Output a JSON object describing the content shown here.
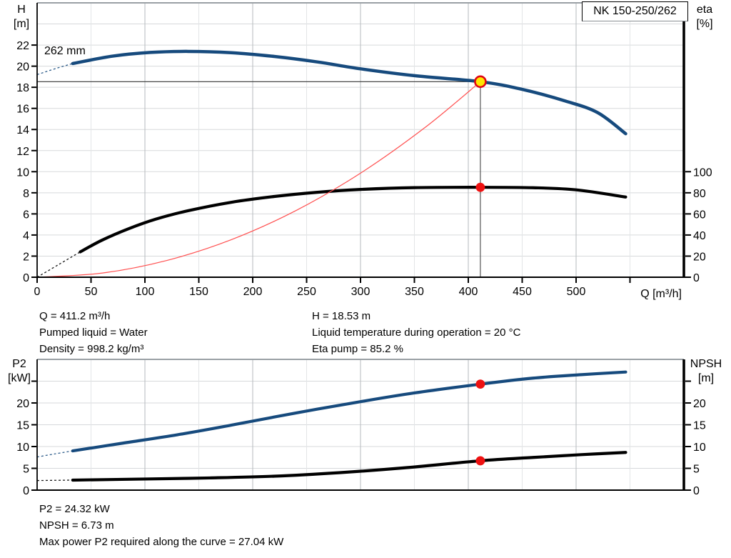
{
  "title_box": "NK 150-250/262",
  "impeller_diameter_label": "262 mm",
  "info_top": {
    "left": [
      "Q = 411.2 m³/h",
      "Pumped liquid = Water",
      "Density = 998.2 kg/m³"
    ],
    "right": [
      "H = 18.53 m",
      "Liquid temperature during operation = 20 °C",
      "Eta pump = 85.2 %"
    ]
  },
  "info_bottom": [
    "P2 = 24.32 kW",
    "NPSH = 6.73 m",
    "Max power P2 required along the curve = 27.04 kW"
  ],
  "colors": {
    "curve_blue": "#164a7d",
    "curve_black": "#000000",
    "system_curve_red": "#ff5050",
    "marker_red": "#ee1111",
    "duty_fill_yellow": "#ffe600",
    "duty_stroke_red": "#e00613",
    "grid_light": "#e3e5e7",
    "grid_mid": "#b6babe",
    "grid_h": "#d7d9db",
    "border_gray": "#9aa0a5",
    "crosshair": "#555555"
  },
  "chart_data": [
    {
      "type": "line",
      "name": "hq-performance-chart",
      "xlabel": "Q [m³/h]",
      "ylabel_left": [
        "H",
        "[m]"
      ],
      "ylabel_right": [
        "eta",
        "[%]"
      ],
      "xlim": [
        0,
        600
      ],
      "ylim_left": [
        0,
        26
      ],
      "ylim_right": [
        0,
        260
      ],
      "x_ticks": [
        0,
        50,
        100,
        150,
        200,
        250,
        300,
        350,
        400,
        450,
        500
      ],
      "x_ticks_minor": [
        550
      ],
      "x_grid": [
        50,
        100,
        150,
        200,
        250,
        300,
        350,
        400,
        450,
        500,
        550
      ],
      "y_ticks_left": [
        0,
        2,
        4,
        6,
        8,
        10,
        12,
        14,
        16,
        18,
        20,
        22
      ],
      "y_ticks_left_minor": [],
      "y_grid_left": [
        2,
        4,
        6,
        8,
        10,
        12,
        14,
        16,
        18,
        20,
        22,
        24
      ],
      "y_ticks_right": [
        0,
        20,
        40,
        60,
        80,
        100
      ],
      "y_ticks_right_minor": [],
      "duty_point": {
        "q": 411.2,
        "value": 18.53
      },
      "series": [
        {
          "name": "head-curve",
          "axis": "left",
          "color": "#164a7d",
          "width": 4.5,
          "dash": [
            [
              0,
              19.2
            ],
            [
              18,
              19.8
            ],
            [
              33,
              20.25
            ]
          ],
          "points": [
            [
              33,
              20.25
            ],
            [
              70,
              20.95
            ],
            [
              105,
              21.3
            ],
            [
              140,
              21.4
            ],
            [
              180,
              21.28
            ],
            [
              220,
              20.92
            ],
            [
              260,
              20.4
            ],
            [
              300,
              19.75
            ],
            [
              350,
              19.1
            ],
            [
              411.2,
              18.53
            ],
            [
              450,
              17.8
            ],
            [
              490,
              16.7
            ],
            [
              520,
              15.6
            ],
            [
              546,
              13.6
            ]
          ]
        },
        {
          "name": "efficiency-curve",
          "axis": "right",
          "color": "#000000",
          "width": 4.2,
          "dash": [
            [
              0,
              0
            ],
            [
              20,
              12
            ],
            [
              40,
              24
            ]
          ],
          "points": [
            [
              40,
              24
            ],
            [
              60,
              35
            ],
            [
              85,
              46
            ],
            [
              110,
              55
            ],
            [
              140,
              63
            ],
            [
              180,
              71
            ],
            [
              220,
              76.5
            ],
            [
              260,
              80.5
            ],
            [
              300,
              83.2
            ],
            [
              350,
              84.9
            ],
            [
              411.2,
              85.2
            ],
            [
              460,
              84.8
            ],
            [
              500,
              82.8
            ],
            [
              546,
              76
            ]
          ]
        },
        {
          "name": "system-curve",
          "axis": "left",
          "color": "#ff5050",
          "width": 1.2,
          "points": [
            [
              0,
              0
            ],
            [
              60,
              0.39
            ],
            [
              120,
              1.58
            ],
            [
              180,
              3.55
            ],
            [
              240,
              6.31
            ],
            [
              300,
              9.86
            ],
            [
              360,
              14.2
            ],
            [
              411.2,
              18.53
            ]
          ]
        }
      ],
      "markers": [
        {
          "name": "duty-point-marker",
          "q": 411.2,
          "value": 18.53,
          "axis": "left",
          "style": "duty"
        },
        {
          "name": "efficiency-point-marker",
          "q": 411.2,
          "value": 85.2,
          "axis": "right",
          "style": "dot"
        }
      ]
    },
    {
      "type": "line",
      "name": "p2-npsh-chart",
      "xlabel": "",
      "ylabel_left": [
        "P2",
        "[kW]"
      ],
      "ylabel_right": [
        "NPSH",
        "[m]"
      ],
      "xlim": [
        0,
        600
      ],
      "ylim_left": [
        0,
        30
      ],
      "ylim_right": [
        0,
        30
      ],
      "x_ticks": [],
      "x_ticks_minor": [],
      "x_grid": [
        50,
        100,
        150,
        200,
        250,
        300,
        350,
        400,
        450,
        500,
        550
      ],
      "y_ticks_left": [
        0,
        5,
        10,
        15,
        20
      ],
      "y_ticks_left_minor": [
        25
      ],
      "y_grid_left": [
        5,
        10,
        15,
        20,
        25
      ],
      "y_ticks_right": [
        0,
        5,
        10,
        15,
        20
      ],
      "y_ticks_right_minor": [
        25
      ],
      "series": [
        {
          "name": "power-curve",
          "axis": "left",
          "color": "#164a7d",
          "width": 4.2,
          "dash": [
            [
              0,
              7.6
            ],
            [
              16,
              8.3
            ],
            [
              33,
              9.0
            ]
          ],
          "points": [
            [
              33,
              9.0
            ],
            [
              80,
              10.8
            ],
            [
              130,
              12.7
            ],
            [
              180,
              14.9
            ],
            [
              240,
              17.7
            ],
            [
              300,
              20.3
            ],
            [
              350,
              22.3
            ],
            [
              411.2,
              24.32
            ],
            [
              460,
              25.7
            ],
            [
              505,
              26.5
            ],
            [
              546,
              27.1
            ]
          ]
        },
        {
          "name": "npsh-curve",
          "axis": "right",
          "color": "#000000",
          "width": 4.2,
          "dash": [
            [
              0,
              2.2
            ],
            [
              33,
              2.3
            ]
          ],
          "points": [
            [
              33,
              2.3
            ],
            [
              100,
              2.55
            ],
            [
              160,
              2.8
            ],
            [
              220,
              3.2
            ],
            [
              280,
              4.0
            ],
            [
              340,
              5.1
            ],
            [
              411.2,
              6.73
            ],
            [
              460,
              7.5
            ],
            [
              505,
              8.15
            ],
            [
              546,
              8.65
            ]
          ]
        }
      ],
      "markers": [
        {
          "name": "power-point-marker",
          "q": 411.2,
          "value": 24.32,
          "axis": "left",
          "style": "dot"
        },
        {
          "name": "npsh-point-marker",
          "q": 411.2,
          "value": 6.73,
          "axis": "right",
          "style": "dot"
        }
      ]
    }
  ]
}
